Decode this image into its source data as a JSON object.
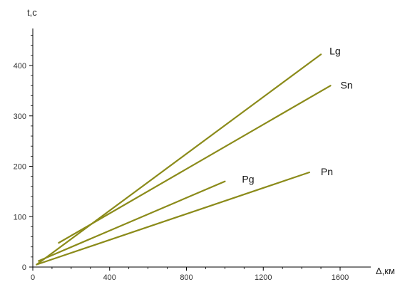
{
  "chart_data": {
    "type": "line",
    "title": "",
    "xlabel": "Δ,км",
    "ylabel": "t,c",
    "xlim": [
      0,
      1680
    ],
    "ylim": [
      0,
      470
    ],
    "xticks": [
      0,
      400,
      800,
      1200,
      1600
    ],
    "yticks": [
      0,
      100,
      200,
      300,
      400
    ],
    "xtick_labels": [
      "0",
      "400",
      "800",
      "1200",
      "1600"
    ],
    "ytick_labels": [
      "0",
      "100",
      "200",
      "300",
      "400"
    ],
    "grid": false,
    "line_color": "#8b8b1a",
    "series": [
      {
        "name": "Lg",
        "x": [
          20,
          1500
        ],
        "y": [
          5,
          422
        ]
      },
      {
        "name": "Sn",
        "x": [
          135,
          1550
        ],
        "y": [
          48,
          360
        ]
      },
      {
        "name": "Pg",
        "x": [
          30,
          1000
        ],
        "y": [
          12,
          170
        ]
      },
      {
        "name": "Pn",
        "x": [
          20,
          1440
        ],
        "y": [
          5,
          188
        ]
      }
    ]
  }
}
